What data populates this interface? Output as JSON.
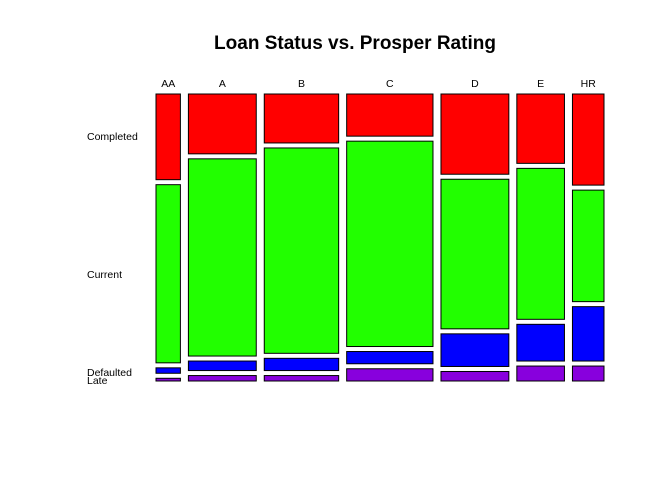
{
  "chart_data": {
    "type": "mosaic",
    "title": "Loan Status vs. Prosper Rating",
    "xlabel": "",
    "ylabel": "",
    "categories": [
      "AA",
      "A",
      "B",
      "C",
      "D",
      "E",
      "HR"
    ],
    "column_share": [
      0.041,
      0.114,
      0.125,
      0.145,
      0.114,
      0.08,
      0.053
    ],
    "row_labels": [
      "Completed",
      "Current",
      "Defaulted",
      "Late"
    ],
    "series": [
      {
        "name": "Completed",
        "color": "#ff0000",
        "values": [
          0.315,
          0.22,
          0.18,
          0.155,
          0.295,
          0.255,
          0.335
        ]
      },
      {
        "name": "Current",
        "color": "#22ff00",
        "values": [
          0.655,
          0.725,
          0.755,
          0.755,
          0.55,
          0.555,
          0.41
        ]
      },
      {
        "name": "Defaulted",
        "color": "#0000ff",
        "values": [
          0.02,
          0.035,
          0.045,
          0.045,
          0.12,
          0.135,
          0.2
        ]
      },
      {
        "name": "Late",
        "color": "#8800dd",
        "values": [
          0.01,
          0.02,
          0.02,
          0.045,
          0.035,
          0.055,
          0.055
        ]
      }
    ]
  }
}
